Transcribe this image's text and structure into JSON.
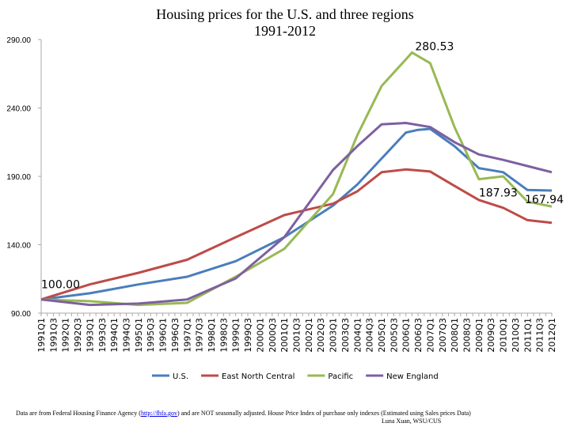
{
  "chart_data": {
    "type": "line",
    "title": "Housing prices for the U.S. and three regions",
    "subtitle": "1991-2012",
    "xlabel": "",
    "ylabel": "",
    "ylim": [
      90,
      290
    ],
    "yticks": [
      "90.00",
      "140.00",
      "190.00",
      "240.00",
      "290.00"
    ],
    "ytick_values": [
      90,
      140,
      190,
      240,
      290
    ],
    "xticks": [
      "1991Q1",
      "1991Q3",
      "1992Q1",
      "1992Q3",
      "1993Q1",
      "1993Q3",
      "1994Q1",
      "1994Q3",
      "1995Q1",
      "1995Q3",
      "1996Q1",
      "1996Q3",
      "1997Q1",
      "1997Q3",
      "1998Q1",
      "1998Q3",
      "1999Q1",
      "1999Q3",
      "2000Q1",
      "2000Q3",
      "2001Q1",
      "2001Q3",
      "2002Q1",
      "2002Q3",
      "2003Q1",
      "2003Q3",
      "2004Q1",
      "2004Q3",
      "2005Q1",
      "2005Q3",
      "2006Q1",
      "2006Q3",
      "2007Q1",
      "2007Q3",
      "2008Q1",
      "2008Q3",
      "2009Q1",
      "2009Q3",
      "2010Q1",
      "2010Q3",
      "2011Q1",
      "2011Q3",
      "2012Q1"
    ],
    "grid": false,
    "legend_position": "bottom",
    "series": [
      {
        "name": "U.S.",
        "color": "#4a7ebb",
        "points": [
          [
            "1991Q1",
            100
          ],
          [
            "1993Q1",
            104.5
          ],
          [
            "1995Q1",
            111
          ],
          [
            "1997Q1",
            116.6
          ],
          [
            "1999Q1",
            128
          ],
          [
            "2001Q1",
            145.5
          ],
          [
            "2003Q1",
            168.6
          ],
          [
            "2004Q1",
            184
          ],
          [
            "2005Q1",
            203
          ],
          [
            "2006Q1",
            222
          ],
          [
            "2006Q3",
            224
          ],
          [
            "2007Q1",
            224.7
          ],
          [
            "2008Q1",
            212
          ],
          [
            "2009Q1",
            196
          ],
          [
            "2010Q1",
            193
          ],
          [
            "2011Q1",
            180
          ],
          [
            "2012Q1",
            179.6
          ]
        ]
      },
      {
        "name": "East North Central",
        "color": "#be4b48",
        "points": [
          [
            "1991Q1",
            100
          ],
          [
            "1993Q1",
            111
          ],
          [
            "1995Q1",
            119.5
          ],
          [
            "1997Q1",
            129
          ],
          [
            "1999Q1",
            145.5
          ],
          [
            "2001Q1",
            161.7
          ],
          [
            "2003Q1",
            170
          ],
          [
            "2004Q1",
            179
          ],
          [
            "2005Q1",
            193
          ],
          [
            "2006Q1",
            195
          ],
          [
            "2007Q1",
            193.5
          ],
          [
            "2008Q1",
            183
          ],
          [
            "2009Q1",
            172.7
          ],
          [
            "2010Q1",
            167
          ],
          [
            "2011Q1",
            158
          ],
          [
            "2012Q1",
            156
          ]
        ]
      },
      {
        "name": "Pacific",
        "color": "#98b954",
        "points": [
          [
            "1991Q1",
            100
          ],
          [
            "1993Q1",
            98.7
          ],
          [
            "1995Q1",
            96
          ],
          [
            "1997Q1",
            97.5
          ],
          [
            "1999Q1",
            116.6
          ],
          [
            "2001Q1",
            137
          ],
          [
            "2003Q1",
            177
          ],
          [
            "2004Q1",
            220
          ],
          [
            "2005Q1",
            256
          ],
          [
            "2006Q1",
            275.5
          ],
          [
            "2006Q2",
            280.53
          ],
          [
            "2007Q1",
            272.7
          ],
          [
            "2008Q1",
            226
          ],
          [
            "2009Q1",
            187.93
          ],
          [
            "2010Q1",
            190
          ],
          [
            "2011Q1",
            171.5
          ],
          [
            "2012Q1",
            167.94
          ]
        ]
      },
      {
        "name": "New England",
        "color": "#7d60a0",
        "points": [
          [
            "1991Q1",
            100
          ],
          [
            "1993Q1",
            96
          ],
          [
            "1995Q1",
            97
          ],
          [
            "1997Q1",
            100
          ],
          [
            "1999Q1",
            115.4
          ],
          [
            "2001Q1",
            145.5
          ],
          [
            "2003Q1",
            194.6
          ],
          [
            "2004Q1",
            212
          ],
          [
            "2005Q1",
            228
          ],
          [
            "2006Q1",
            229
          ],
          [
            "2007Q1",
            226
          ],
          [
            "2008Q1",
            215
          ],
          [
            "2009Q1",
            206
          ],
          [
            "2010Q1",
            202
          ],
          [
            "2011Q1",
            197.5
          ],
          [
            "2012Q1",
            193
          ]
        ]
      }
    ],
    "annotations": [
      {
        "text": "100.00",
        "x": "1991Q1",
        "y": 100
      },
      {
        "text": "280.53",
        "x": "2006Q2",
        "y": 280.53
      },
      {
        "text": "187.93",
        "x": "2009Q1",
        "y": 187.93
      },
      {
        "text": "167.94",
        "x": "2012Q1",
        "y": 167.94
      }
    ]
  },
  "footer": {
    "source_prefix": "Data are from Federal Housing Finance Agency  (",
    "source_link": "http://fhfa.gov",
    "source_suffix": ") and are NOT seasonally adjusted. House Price Index of purchase only indexes (Estimated using Sales prices Data)",
    "author": "Luna Xuan, WSU/CUS"
  }
}
